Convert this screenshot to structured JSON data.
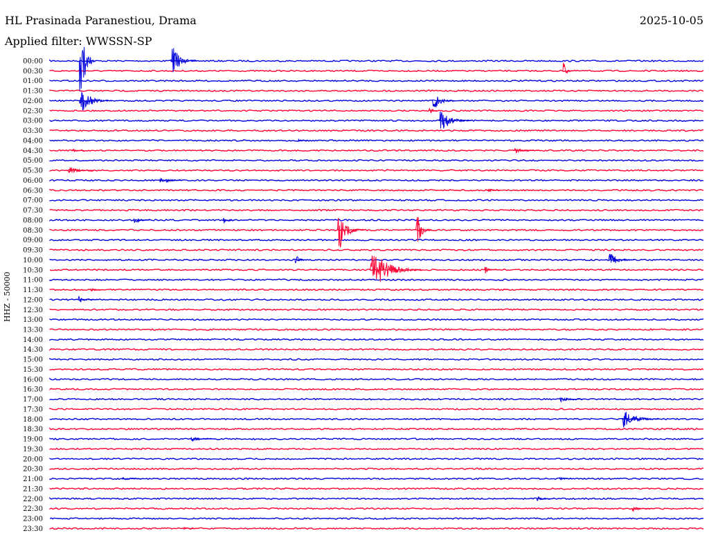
{
  "header": {
    "title": "HL Prasinada Paranestiou, Drama",
    "date": "2025-10-05",
    "filter": "Applied filter: WWSSN-SP"
  },
  "colors": {
    "trace_a": "#0000dd",
    "trace_b": "#ff0033",
    "background": "#ffffff"
  },
  "chart_data": {
    "type": "line",
    "title": "HL Prasinada Paranestiou, Drama",
    "ylabel": "HHZ - 50000",
    "categories": [
      "00:00",
      "00:30",
      "01:00",
      "01:30",
      "02:00",
      "02:30",
      "03:00",
      "03:30",
      "04:00",
      "04:30",
      "05:00",
      "05:30",
      "06:00",
      "06:30",
      "07:00",
      "07:30",
      "08:00",
      "08:30",
      "09:00",
      "09:30",
      "10:00",
      "10:30",
      "11:00",
      "11:30",
      "12:00",
      "12:30",
      "13:00",
      "13:30",
      "14:00",
      "14:30",
      "15:00",
      "15:30",
      "16:00",
      "16:30",
      "17:00",
      "17:30",
      "18:00",
      "18:30",
      "19:00",
      "19:30",
      "20:00",
      "20:30",
      "21:00",
      "21:30",
      "22:00",
      "22:30",
      "23:00",
      "23:30"
    ],
    "events": [
      {
        "row": 0,
        "x": 0.045,
        "amp": 90,
        "dur": 0.025
      },
      {
        "row": 0,
        "x": 0.185,
        "amp": 30,
        "dur": 0.04
      },
      {
        "row": 1,
        "x": 0.785,
        "amp": 18,
        "dur": 0.015
      },
      {
        "row": 4,
        "x": 0.045,
        "amp": 25,
        "dur": 0.05
      },
      {
        "row": 4,
        "x": 0.585,
        "amp": 20,
        "dur": 0.035
      },
      {
        "row": 5,
        "x": 0.58,
        "amp": 10,
        "dur": 0.015
      },
      {
        "row": 6,
        "x": 0.595,
        "amp": 22,
        "dur": 0.05
      },
      {
        "row": 8,
        "x": 0.38,
        "amp": 3,
        "dur": 0.015
      },
      {
        "row": 9,
        "x": 0.033,
        "amp": 4,
        "dur": 0.02
      },
      {
        "row": 9,
        "x": 0.71,
        "amp": 5,
        "dur": 0.04
      },
      {
        "row": 11,
        "x": 0.028,
        "amp": 8,
        "dur": 0.04
      },
      {
        "row": 12,
        "x": 0.168,
        "amp": 10,
        "dur": 0.035
      },
      {
        "row": 13,
        "x": 0.67,
        "amp": 4,
        "dur": 0.02
      },
      {
        "row": 16,
        "x": 0.128,
        "amp": 10,
        "dur": 0.025
      },
      {
        "row": 16,
        "x": 0.265,
        "amp": 8,
        "dur": 0.02
      },
      {
        "row": 17,
        "x": 0.44,
        "amp": 40,
        "dur": 0.04
      },
      {
        "row": 17,
        "x": 0.56,
        "amp": 35,
        "dur": 0.025
      },
      {
        "row": 20,
        "x": 0.375,
        "amp": 10,
        "dur": 0.02
      },
      {
        "row": 20,
        "x": 0.855,
        "amp": 14,
        "dur": 0.04
      },
      {
        "row": 21,
        "x": 0.49,
        "amp": 38,
        "dur": 0.08
      },
      {
        "row": 21,
        "x": 0.665,
        "amp": 7,
        "dur": 0.02
      },
      {
        "row": 23,
        "x": 0.062,
        "amp": 5,
        "dur": 0.02
      },
      {
        "row": 24,
        "x": 0.043,
        "amp": 7,
        "dur": 0.03
      },
      {
        "row": 34,
        "x": 0.78,
        "amp": 5,
        "dur": 0.04
      },
      {
        "row": 36,
        "x": 0.875,
        "amp": 18,
        "dur": 0.06
      },
      {
        "row": 38,
        "x": 0.215,
        "amp": 5,
        "dur": 0.04
      },
      {
        "row": 42,
        "x": 0.11,
        "amp": 3,
        "dur": 0.04
      },
      {
        "row": 42,
        "x": 0.78,
        "amp": 4,
        "dur": 0.02
      },
      {
        "row": 44,
        "x": 0.745,
        "amp": 6,
        "dur": 0.025
      },
      {
        "row": 45,
        "x": 0.89,
        "amp": 5,
        "dur": 0.035
      },
      {
        "row": 47,
        "x": 0.205,
        "amp": 3,
        "dur": 0.02
      }
    ]
  }
}
